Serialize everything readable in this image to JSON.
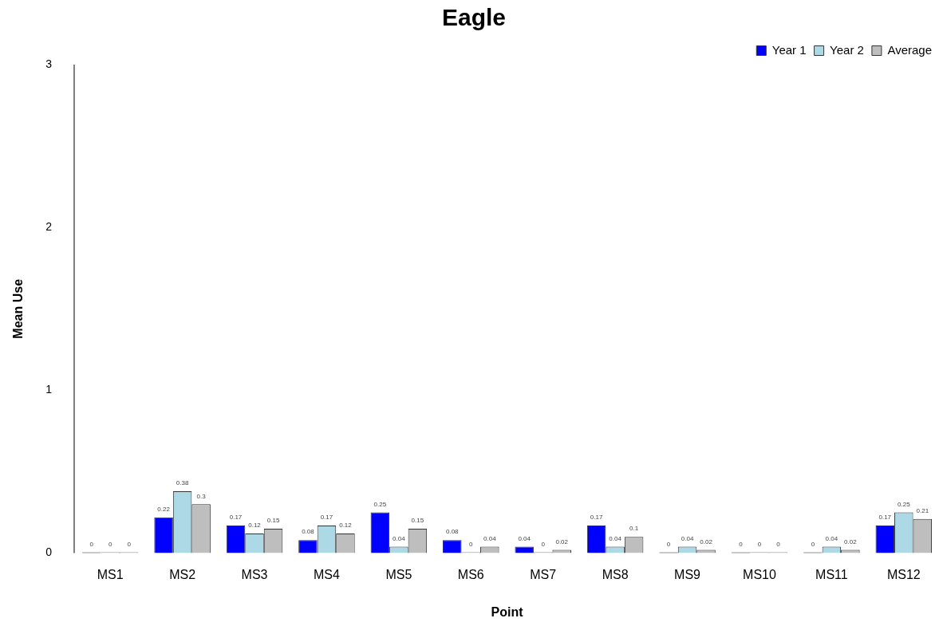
{
  "chart_data": {
    "type": "bar",
    "title": "Eagle",
    "xlabel": "Point",
    "ylabel": "Mean Use",
    "categories": [
      "MS1",
      "MS2",
      "MS3",
      "MS4",
      "MS5",
      "MS6",
      "MS7",
      "MS8",
      "MS9",
      "MS10",
      "MS11",
      "MS12"
    ],
    "series": [
      {
        "name": "Year 1",
        "color": "#0000ff",
        "values": [
          0,
          0.22,
          0.17,
          0.08,
          0.25,
          0.08,
          0.04,
          0.17,
          0,
          0,
          0,
          0.17
        ]
      },
      {
        "name": "Year 2",
        "color": "#add8e6",
        "values": [
          0,
          0.38,
          0.12,
          0.17,
          0.04,
          0,
          0,
          0.04,
          0.04,
          0,
          0.04,
          0.25
        ]
      },
      {
        "name": "Average",
        "color": "#bebebe",
        "values": [
          0,
          0.3,
          0.15,
          0.12,
          0.15,
          0.04,
          0.02,
          0.1,
          0.02,
          0,
          0.02,
          0.21
        ]
      }
    ],
    "ylim": [
      0,
      3
    ],
    "yticks": [
      0,
      1,
      2,
      3
    ],
    "legend": "top right",
    "data_labels": true
  }
}
